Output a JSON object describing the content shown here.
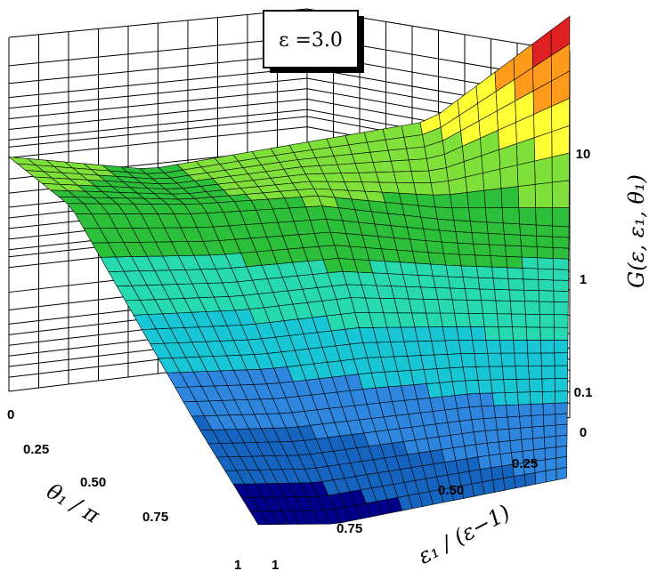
{
  "chart_data": {
    "type": "surface",
    "annotation": "ε =3.0",
    "zlabel": "G(ε, ε₁, θ₁)",
    "xlabel": "θ₁ / π",
    "ylabel": "ε₁ / (ε−1)",
    "z_scale": "log",
    "z_ticks": [
      "10",
      "1",
      "0.1",
      "0"
    ],
    "x_ticks": [
      "0",
      "0.25",
      "0.50",
      "0.75",
      "1"
    ],
    "y_ticks": [
      "1",
      "0.75",
      "0.50",
      "0.25",
      "0"
    ],
    "x_range": [
      0,
      1
    ],
    "y_range": [
      0,
      1
    ],
    "grid": true,
    "colormap": [
      "#00008b",
      "#1565c0",
      "#2e86de",
      "#19c6d6",
      "#27d9b0",
      "#2bbf3a",
      "#7fe03a",
      "#ffff33",
      "#ff9a1a",
      "#e02020"
    ],
    "surface_z_log10": {
      "x": [
        0,
        0.25,
        0.5,
        0.75,
        1
      ],
      "y": [
        0,
        0.25,
        0.5,
        0.75,
        1
      ],
      "values": [
        [
          1.4,
          0.3,
          0.05,
          -0.3,
          -0.55
        ],
        [
          0.7,
          0.35,
          0.05,
          -0.35,
          -0.7
        ],
        [
          0.55,
          0.45,
          0.05,
          -0.45,
          -0.85
        ],
        [
          0.4,
          0.4,
          -0.05,
          -0.55,
          -1.0
        ],
        [
          0.5,
          0.4,
          -0.1,
          -0.6,
          -1.05
        ]
      ]
    }
  }
}
